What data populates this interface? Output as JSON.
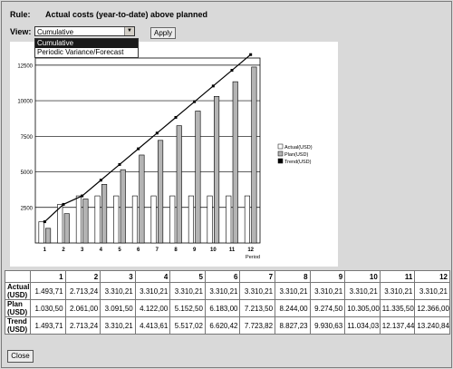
{
  "rule": {
    "label": "Rule:",
    "value": "Actual costs (year-to-date) above planned"
  },
  "view": {
    "label": "View:",
    "selected": "Cumulative",
    "options": [
      "Cumulative",
      "Periodic Variance/Forecast"
    ]
  },
  "apply_label": "Apply",
  "close_label": "Close",
  "chart_data": {
    "type": "bar",
    "categories": [
      "1",
      "2",
      "3",
      "4",
      "5",
      "6",
      "7",
      "8",
      "9",
      "10",
      "11",
      "12"
    ],
    "xlabel": "Period",
    "ylabel": "",
    "ylim": [
      0,
      13000
    ],
    "yticks": [
      "2500",
      "5000",
      "7500",
      "10000",
      "12500"
    ],
    "grid": true,
    "legend_position": "right",
    "series": [
      {
        "name": "Actual(USD)",
        "kind": "bar",
        "color": "#ffffff",
        "values": [
          1493.71,
          2713.24,
          3310.21,
          3310.21,
          3310.21,
          3310.21,
          3310.21,
          3310.21,
          3310.21,
          3310.21,
          3310.21,
          3310.21
        ]
      },
      {
        "name": "Plan(USD)",
        "kind": "bar",
        "color": "#b4b4b4",
        "values": [
          1030.5,
          2061.0,
          3091.5,
          4122.0,
          5152.5,
          6183.0,
          7213.5,
          8244.0,
          9274.5,
          10305.0,
          11335.5,
          12366.0
        ]
      },
      {
        "name": "Trend(USD)",
        "kind": "line",
        "color": "#000000",
        "values": [
          1493.71,
          2713.24,
          3310.21,
          4413.61,
          5517.02,
          6620.42,
          7723.82,
          8827.23,
          9930.63,
          11034.03,
          12137.44,
          13240.84
        ]
      }
    ]
  },
  "table": {
    "headers": [
      "1",
      "2",
      "3",
      "4",
      "5",
      "6",
      "7",
      "8",
      "9",
      "10",
      "11",
      "12"
    ],
    "rows": [
      {
        "label1": "Actual",
        "label2": "(USD)",
        "cells": [
          "1.493,71",
          "2.713,24",
          "3.310,21",
          "3.310,21",
          "3.310,21",
          "3.310,21",
          "3.310,21",
          "3.310,21",
          "3.310,21",
          "3.310,21",
          "3.310,21",
          "3.310,21"
        ]
      },
      {
        "label1": "Plan",
        "label2": "(USD)",
        "cells": [
          "1.030,50",
          "2.061,00",
          "3.091,50",
          "4.122,00",
          "5.152,50",
          "6.183,00",
          "7.213,50",
          "8.244,00",
          "9.274,50",
          "10.305,00",
          "11.335,50",
          "12.366,00"
        ]
      },
      {
        "label1": "Trend",
        "label2": "(USD)",
        "cells": [
          "1.493,71",
          "2.713,24",
          "3.310,21",
          "4.413,61",
          "5.517,02",
          "6.620,42",
          "7.723,82",
          "8.827,23",
          "9.930,63",
          "11.034,03",
          "12.137,44",
          "13.240,84"
        ]
      }
    ]
  }
}
